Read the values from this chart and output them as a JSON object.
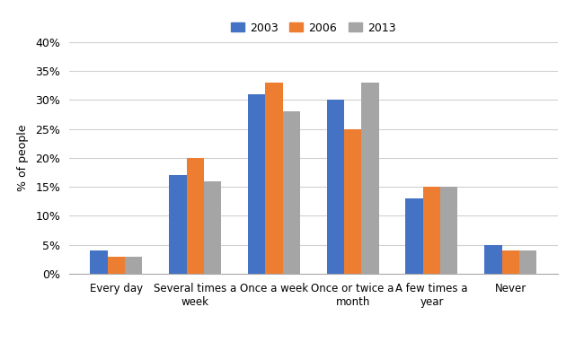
{
  "categories": [
    "Every day",
    "Several times a\nweek",
    "Once a week",
    "Once or twice a\nmonth",
    "A few times a\nyear",
    "Never"
  ],
  "series": {
    "2003": [
      4,
      17,
      31,
      30,
      13,
      5
    ],
    "2006": [
      3,
      20,
      33,
      25,
      15,
      4
    ],
    "2013": [
      3,
      16,
      28,
      33,
      15,
      4
    ]
  },
  "colors": {
    "2003": "#4472C4",
    "2006": "#ED7D31",
    "2013": "#A5A5A5"
  },
  "ylabel": "% of people",
  "ylim": [
    0,
    40
  ],
  "yticks": [
    0,
    5,
    10,
    15,
    20,
    25,
    30,
    35,
    40
  ],
  "ytick_labels": [
    "0%",
    "5%",
    "10%",
    "15%",
    "20%",
    "25%",
    "30%",
    "35%",
    "40%"
  ],
  "legend_labels": [
    "2003",
    "2006",
    "2013"
  ],
  "bar_width": 0.22,
  "background_color": "#ffffff",
  "grid_color": "#d0d0d0",
  "figsize": [
    6.4,
    3.91
  ],
  "dpi": 100
}
